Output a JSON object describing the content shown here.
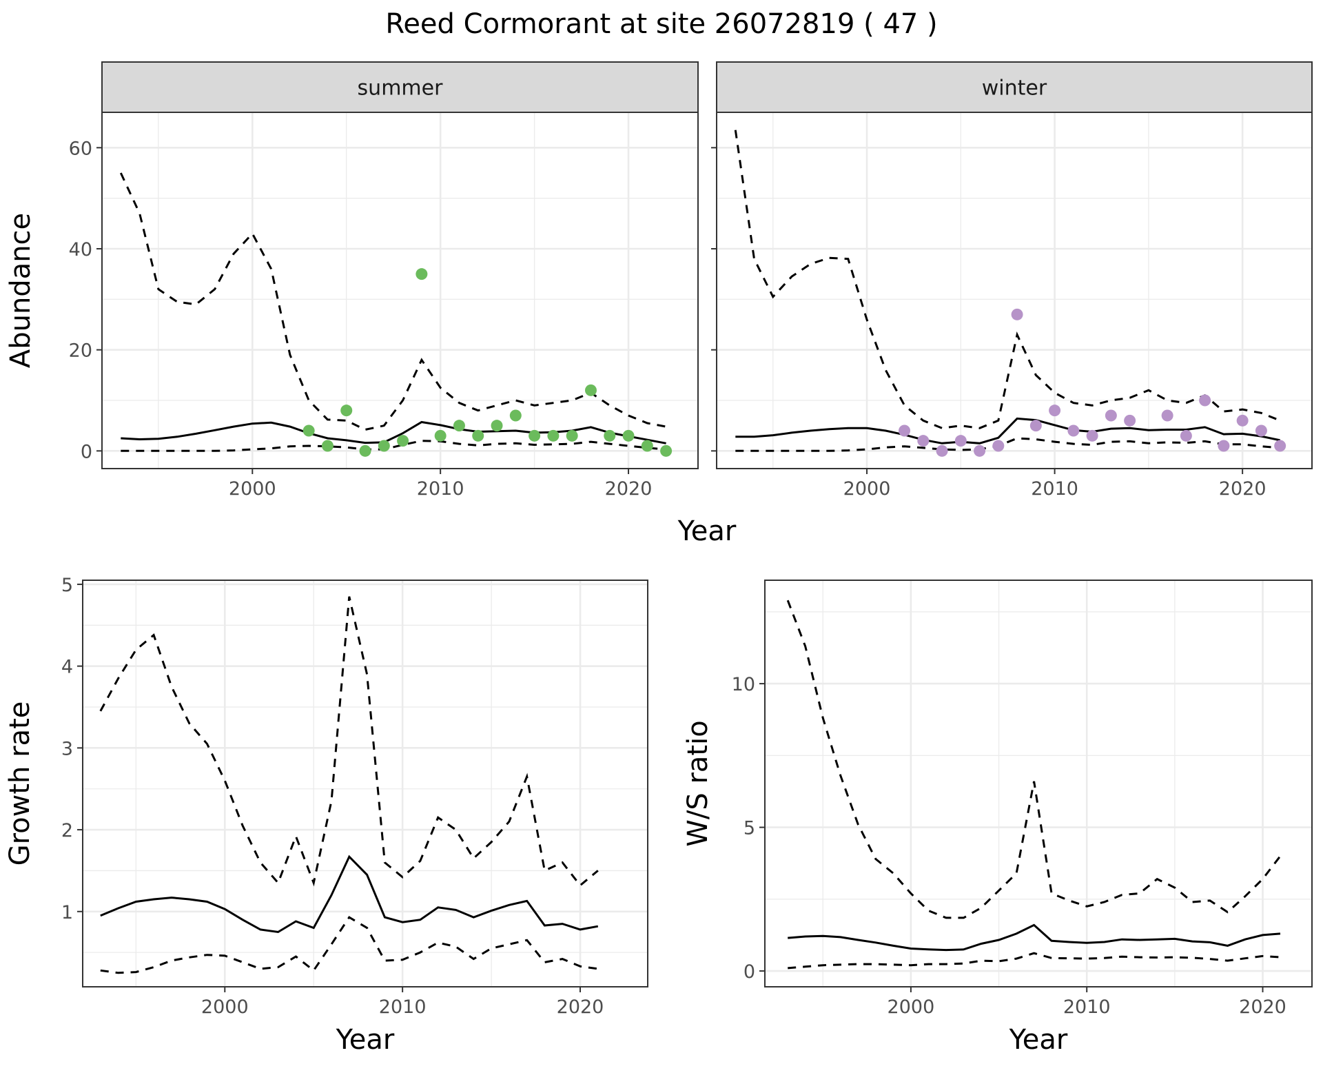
{
  "title": "Reed Cormorant at site 26072819 ( 47 )",
  "colors": {
    "summer_points": "#6bbb5c",
    "winter_points": "#b693c8"
  },
  "chart_data": [
    {
      "type": "line",
      "facet": "summer",
      "xlabel": "Year",
      "ylabel": "Abundance",
      "xlim": [
        1992,
        2023.7
      ],
      "ylim": [
        -3.5,
        67
      ],
      "xticks": [
        2000,
        2010,
        2020
      ],
      "yticks": [
        0,
        20,
        40,
        60
      ],
      "x": [
        1993,
        1994,
        1995,
        1996,
        1997,
        1998,
        1999,
        2000,
        2001,
        2002,
        2003,
        2004,
        2005,
        2006,
        2007,
        2008,
        2009,
        2010,
        2011,
        2012,
        2013,
        2014,
        2015,
        2016,
        2017,
        2018,
        2019,
        2020,
        2021,
        2022
      ],
      "median": [
        2.5,
        2.3,
        2.4,
        2.8,
        3.4,
        4.1,
        4.8,
        5.4,
        5.6,
        4.8,
        3.5,
        2.5,
        2.1,
        1.6,
        1.7,
        3.5,
        5.7,
        5.1,
        4.3,
        3.8,
        3.9,
        4.0,
        3.6,
        3.7,
        4.0,
        4.7,
        3.6,
        2.9,
        2.2,
        1.5
      ],
      "upper": [
        55,
        47,
        32,
        29.5,
        29,
        32,
        39,
        43,
        36,
        19,
        10,
        6.2,
        6,
        4.2,
        5,
        10,
        18,
        12.5,
        9.5,
        8,
        9,
        10,
        9,
        9.5,
        10,
        11.5,
        9,
        7,
        5.5,
        4.8
      ],
      "lower": [
        0,
        0,
        0,
        0,
        0,
        0,
        0.1,
        0.3,
        0.5,
        0.9,
        1,
        0.9,
        0.7,
        0.3,
        0.3,
        1.2,
        2,
        1.9,
        1.4,
        1.1,
        1.4,
        1.5,
        1.2,
        1.3,
        1.4,
        1.8,
        1.4,
        1.0,
        0.6,
        0.3
      ],
      "observed_x": [
        2003,
        2004,
        2005,
        2006,
        2007,
        2008,
        2009,
        2010,
        2011,
        2012,
        2013,
        2014,
        2015,
        2016,
        2017,
        2018,
        2019,
        2020,
        2021,
        2022
      ],
      "observed_y": [
        4,
        1,
        8,
        0,
        1,
        2,
        35,
        3,
        5,
        3,
        5,
        7,
        3,
        3,
        3,
        12,
        3,
        3,
        1,
        0
      ]
    },
    {
      "type": "line",
      "facet": "winter",
      "xlabel": "Year",
      "ylabel": "Abundance",
      "xlim": [
        1992,
        2023.7
      ],
      "ylim": [
        -3.5,
        67
      ],
      "xticks": [
        2000,
        2010,
        2020
      ],
      "yticks": [
        0,
        20,
        40,
        60
      ],
      "x": [
        1993,
        1994,
        1995,
        1996,
        1997,
        1998,
        1999,
        2000,
        2001,
        2002,
        2003,
        2004,
        2005,
        2006,
        2007,
        2008,
        2009,
        2010,
        2011,
        2012,
        2013,
        2014,
        2015,
        2016,
        2017,
        2018,
        2019,
        2020,
        2021,
        2022
      ],
      "median": [
        2.8,
        2.8,
        3.1,
        3.6,
        4.0,
        4.3,
        4.5,
        4.5,
        4.0,
        3.2,
        2.2,
        1.5,
        1.8,
        1.5,
        2.6,
        6.4,
        6.1,
        5.1,
        4.1,
        3.8,
        4.4,
        4.5,
        4.1,
        4.2,
        4.2,
        4.7,
        3.3,
        3.4,
        2.9,
        2.1
      ],
      "upper": [
        63.5,
        38,
        30.5,
        34.5,
        37,
        38.2,
        38,
        26,
        16,
        9,
        6,
        4.5,
        5,
        4.5,
        6,
        23,
        15,
        11.5,
        9.5,
        9,
        10,
        10.5,
        12,
        10,
        9.5,
        11,
        7.8,
        8.2,
        7.5,
        6
      ],
      "lower": [
        0,
        0,
        0,
        0,
        0,
        0,
        0.1,
        0.3,
        0.7,
        0.9,
        0.6,
        0.3,
        0.2,
        0.3,
        1,
        2.5,
        2.3,
        1.8,
        1.4,
        1.2,
        1.8,
        1.9,
        1.5,
        1.7,
        1.6,
        1.9,
        1.3,
        1.3,
        0.9,
        0.6
      ],
      "observed_x": [
        2002,
        2003,
        2004,
        2005,
        2006,
        2007,
        2008,
        2009,
        2010,
        2011,
        2012,
        2013,
        2014,
        2016,
        2017,
        2018,
        2019,
        2020,
        2021,
        2022
      ],
      "observed_y": [
        4,
        2,
        0,
        2,
        0,
        1,
        27,
        5,
        8,
        4,
        3,
        7,
        6,
        7,
        3,
        10,
        1,
        6,
        4,
        1
      ]
    },
    {
      "type": "line",
      "xlabel": "Year",
      "ylabel": "Growth rate",
      "xlim": [
        1992,
        2023.8
      ],
      "ylim": [
        0.08,
        5.05
      ],
      "xticks": [
        2000,
        2010,
        2020
      ],
      "yticks": [
        1,
        2,
        3,
        4,
        5
      ],
      "x": [
        1993,
        1994,
        1995,
        1996,
        1997,
        1998,
        1999,
        2000,
        2001,
        2002,
        2003,
        2004,
        2005,
        2006,
        2007,
        2008,
        2009,
        2010,
        2011,
        2012,
        2013,
        2014,
        2015,
        2016,
        2017,
        2018,
        2019,
        2020,
        2021
      ],
      "median": [
        0.95,
        1.04,
        1.12,
        1.15,
        1.17,
        1.15,
        1.12,
        1.03,
        0.9,
        0.78,
        0.75,
        0.88,
        0.8,
        1.2,
        1.67,
        1.45,
        0.93,
        0.87,
        0.9,
        1.05,
        1.02,
        0.93,
        1.01,
        1.08,
        1.13,
        0.83,
        0.85,
        0.78,
        0.82
      ],
      "upper": [
        3.45,
        3.85,
        4.2,
        4.38,
        3.75,
        3.3,
        3.05,
        2.6,
        2.05,
        1.6,
        1.35,
        1.92,
        1.35,
        2.35,
        4.85,
        3.9,
        1.6,
        1.42,
        1.62,
        2.15,
        2.0,
        1.65,
        1.85,
        2.1,
        2.65,
        1.5,
        1.6,
        1.32,
        1.5
      ],
      "lower": [
        0.28,
        0.25,
        0.26,
        0.32,
        0.4,
        0.44,
        0.47,
        0.46,
        0.38,
        0.3,
        0.32,
        0.45,
        0.28,
        0.6,
        0.93,
        0.8,
        0.4,
        0.41,
        0.5,
        0.62,
        0.57,
        0.42,
        0.55,
        0.6,
        0.65,
        0.38,
        0.42,
        0.33,
        0.3
      ]
    },
    {
      "type": "line",
      "xlabel": "Year",
      "ylabel": "W/S ratio",
      "xlim": [
        1991.7,
        2022.8
      ],
      "ylim": [
        -0.55,
        13.6
      ],
      "xticks": [
        2000,
        2010,
        2020
      ],
      "yticks": [
        0,
        5,
        10
      ],
      "x": [
        1993,
        1994,
        1995,
        1996,
        1997,
        1998,
        1999,
        2000,
        2001,
        2002,
        2003,
        2004,
        2005,
        2006,
        2007,
        2008,
        2009,
        2010,
        2011,
        2012,
        2013,
        2014,
        2015,
        2016,
        2017,
        2018,
        2019,
        2020,
        2021
      ],
      "median": [
        1.15,
        1.2,
        1.22,
        1.18,
        1.08,
        0.99,
        0.88,
        0.78,
        0.75,
        0.73,
        0.75,
        0.95,
        1.08,
        1.3,
        1.6,
        1.05,
        1.01,
        0.98,
        1.01,
        1.1,
        1.08,
        1.1,
        1.12,
        1.03,
        1.0,
        0.88,
        1.1,
        1.25,
        1.3
      ],
      "upper": [
        12.9,
        11.3,
        8.8,
        6.8,
        5.1,
        3.9,
        3.4,
        2.7,
        2.1,
        1.85,
        1.85,
        2.2,
        2.8,
        3.4,
        6.6,
        2.7,
        2.45,
        2.25,
        2.4,
        2.65,
        2.7,
        3.2,
        2.9,
        2.4,
        2.45,
        2.05,
        2.6,
        3.2,
        4.0
      ],
      "lower": [
        0.1,
        0.15,
        0.2,
        0.22,
        0.24,
        0.24,
        0.22,
        0.2,
        0.24,
        0.24,
        0.26,
        0.36,
        0.34,
        0.43,
        0.62,
        0.45,
        0.44,
        0.43,
        0.45,
        0.5,
        0.48,
        0.47,
        0.48,
        0.46,
        0.42,
        0.36,
        0.44,
        0.52,
        0.48
      ]
    }
  ]
}
